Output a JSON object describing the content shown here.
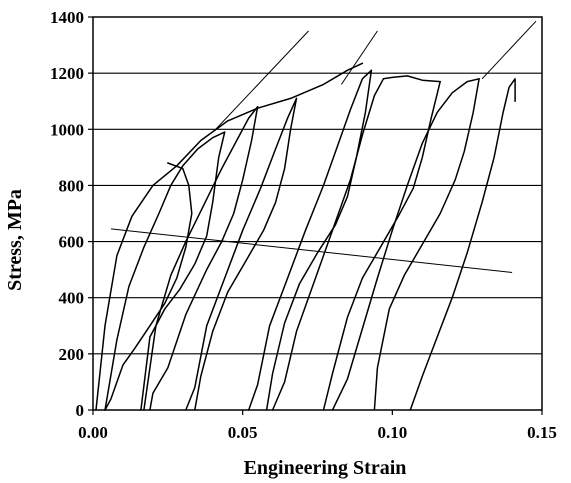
{
  "chart_data": {
    "type": "line",
    "title": "",
    "xlabel": "Engineering Strain",
    "ylabel": "Stress, MPa",
    "xlim": [
      0,
      0.15
    ],
    "ylim": [
      0,
      1400
    ],
    "xticks": [
      0,
      0.05,
      0.1,
      0.15
    ],
    "xtick_labels": [
      "0.00",
      "0.05",
      "0.10",
      "0.15"
    ],
    "yticks": [
      0,
      200,
      400,
      600,
      800,
      1000,
      1200,
      1400
    ],
    "ytick_labels": [
      "0",
      "200",
      "400",
      "600",
      "800",
      "1000",
      "1200",
      "1400"
    ],
    "grid": "horizontal",
    "legend": "none",
    "colors": {
      "ink": "#000000",
      "background": "#ffffff"
    },
    "series": [
      {
        "values": [
          [
            0.001,
            0
          ],
          [
            0.004,
            300
          ],
          [
            0.008,
            550
          ],
          [
            0.013,
            690
          ],
          [
            0.02,
            800
          ],
          [
            0.028,
            870
          ],
          [
            0.036,
            960
          ],
          [
            0.045,
            1030
          ],
          [
            0.055,
            1075
          ],
          [
            0.066,
            1110
          ],
          [
            0.077,
            1160
          ],
          [
            0.085,
            1210
          ],
          [
            0.09,
            1235
          ]
        ]
      },
      {
        "values": [
          [
            0.025,
            880
          ],
          [
            0.03,
            860
          ],
          [
            0.032,
            800
          ],
          [
            0.033,
            700
          ],
          [
            0.031,
            580
          ],
          [
            0.028,
            470
          ],
          [
            0.024,
            380
          ],
          [
            0.019,
            300
          ],
          [
            0.014,
            220
          ],
          [
            0.01,
            160
          ],
          [
            0.006,
            40
          ],
          [
            0.004,
            0
          ]
        ]
      },
      {
        "values": [
          [
            0.004,
            0
          ],
          [
            0.008,
            250
          ],
          [
            0.012,
            440
          ],
          [
            0.017,
            580
          ],
          [
            0.022,
            700
          ],
          [
            0.026,
            800
          ],
          [
            0.03,
            870
          ],
          [
            0.035,
            930
          ],
          [
            0.04,
            970
          ],
          [
            0.044,
            990
          ]
        ]
      },
      {
        "values": [
          [
            0.044,
            990
          ],
          [
            0.042,
            900
          ],
          [
            0.04,
            740
          ],
          [
            0.038,
            620
          ],
          [
            0.034,
            520
          ],
          [
            0.029,
            430
          ],
          [
            0.024,
            360
          ],
          [
            0.019,
            260
          ],
          [
            0.016,
            0
          ]
        ]
      },
      {
        "values": [
          [
            0.017,
            0
          ],
          [
            0.021,
            300
          ],
          [
            0.026,
            480
          ],
          [
            0.031,
            600
          ],
          [
            0.037,
            730
          ],
          [
            0.043,
            860
          ],
          [
            0.048,
            960
          ],
          [
            0.052,
            1040
          ],
          [
            0.055,
            1080
          ]
        ]
      },
      {
        "values": [
          [
            0.055,
            1080
          ],
          [
            0.053,
            960
          ],
          [
            0.05,
            820
          ],
          [
            0.047,
            700
          ],
          [
            0.043,
            600
          ],
          [
            0.038,
            500
          ],
          [
            0.031,
            340
          ],
          [
            0.025,
            150
          ],
          [
            0.02,
            60
          ],
          [
            0.019,
            0
          ]
        ]
      },
      {
        "values": [
          [
            0.031,
            0
          ],
          [
            0.034,
            80
          ],
          [
            0.038,
            300
          ],
          [
            0.044,
            470
          ],
          [
            0.05,
            640
          ],
          [
            0.056,
            790
          ],
          [
            0.061,
            930
          ],
          [
            0.065,
            1040
          ],
          [
            0.068,
            1110
          ]
        ]
      },
      {
        "values": [
          [
            0.068,
            1110
          ],
          [
            0.066,
            1000
          ],
          [
            0.064,
            860
          ],
          [
            0.061,
            740
          ],
          [
            0.057,
            640
          ],
          [
            0.051,
            530
          ],
          [
            0.045,
            420
          ],
          [
            0.04,
            280
          ],
          [
            0.036,
            120
          ],
          [
            0.034,
            0
          ]
        ]
      },
      {
        "values": [
          [
            0.052,
            0
          ],
          [
            0.055,
            90
          ],
          [
            0.059,
            300
          ],
          [
            0.065,
            470
          ],
          [
            0.071,
            640
          ],
          [
            0.077,
            800
          ],
          [
            0.082,
            950
          ],
          [
            0.086,
            1070
          ],
          [
            0.09,
            1180
          ],
          [
            0.093,
            1210
          ]
        ]
      },
      {
        "values": [
          [
            0.093,
            1210
          ],
          [
            0.091,
            1060
          ],
          [
            0.088,
            900
          ],
          [
            0.085,
            760
          ],
          [
            0.081,
            660
          ],
          [
            0.075,
            560
          ],
          [
            0.069,
            450
          ],
          [
            0.064,
            310
          ],
          [
            0.06,
            130
          ],
          [
            0.058,
            0
          ]
        ]
      },
      {
        "values": [
          [
            0.06,
            0
          ],
          [
            0.064,
            100
          ],
          [
            0.068,
            280
          ],
          [
            0.074,
            460
          ],
          [
            0.08,
            640
          ],
          [
            0.086,
            820
          ],
          [
            0.09,
            980
          ],
          [
            0.094,
            1120
          ],
          [
            0.097,
            1180
          ],
          [
            0.1,
            1185
          ],
          [
            0.105,
            1190
          ],
          [
            0.11,
            1175
          ],
          [
            0.116,
            1170
          ]
        ]
      },
      {
        "values": [
          [
            0.116,
            1170
          ],
          [
            0.113,
            1040
          ],
          [
            0.11,
            900
          ],
          [
            0.107,
            790
          ],
          [
            0.102,
            690
          ],
          [
            0.096,
            580
          ],
          [
            0.09,
            470
          ],
          [
            0.085,
            330
          ],
          [
            0.08,
            130
          ],
          [
            0.077,
            0
          ]
        ]
      },
      {
        "values": [
          [
            0.08,
            0
          ],
          [
            0.085,
            110
          ],
          [
            0.09,
            290
          ],
          [
            0.095,
            470
          ],
          [
            0.1,
            640
          ],
          [
            0.105,
            800
          ],
          [
            0.11,
            950
          ],
          [
            0.115,
            1060
          ],
          [
            0.12,
            1130
          ],
          [
            0.125,
            1170
          ],
          [
            0.129,
            1180
          ]
        ]
      },
      {
        "values": [
          [
            0.129,
            1180
          ],
          [
            0.127,
            1060
          ],
          [
            0.124,
            920
          ],
          [
            0.121,
            820
          ],
          [
            0.116,
            700
          ],
          [
            0.11,
            590
          ],
          [
            0.104,
            480
          ],
          [
            0.099,
            360
          ],
          [
            0.095,
            150
          ],
          [
            0.094,
            0
          ]
        ]
      },
      {
        "values": [
          [
            0.106,
            0
          ],
          [
            0.11,
            120
          ],
          [
            0.115,
            260
          ],
          [
            0.12,
            400
          ],
          [
            0.125,
            560
          ],
          [
            0.13,
            740
          ],
          [
            0.134,
            900
          ],
          [
            0.137,
            1060
          ],
          [
            0.139,
            1150
          ],
          [
            0.141,
            1180
          ],
          [
            0.141,
            1100
          ]
        ]
      }
    ],
    "reference_lines": [
      {
        "values": [
          [
            0.041,
            1000
          ],
          [
            0.072,
            1350
          ]
        ]
      },
      {
        "values": [
          [
            0.083,
            1160
          ],
          [
            0.095,
            1350
          ]
        ]
      },
      {
        "values": [
          [
            0.13,
            1180
          ],
          [
            0.148,
            1385
          ]
        ]
      },
      {
        "values": [
          [
            0.006,
            645
          ],
          [
            0.14,
            490
          ]
        ]
      }
    ]
  }
}
